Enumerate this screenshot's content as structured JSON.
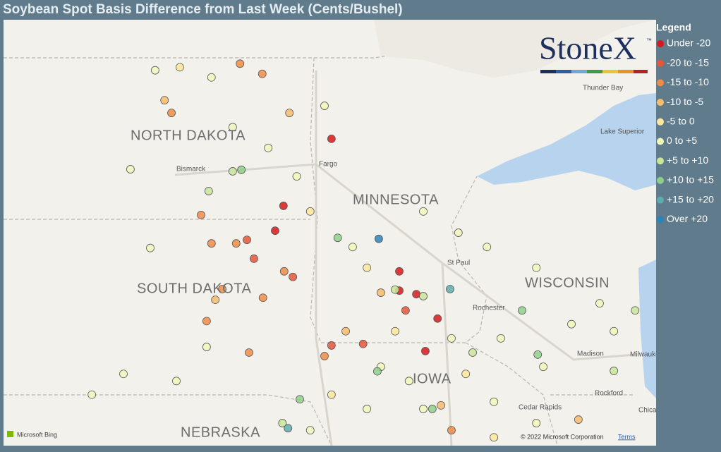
{
  "header": {
    "title": "Soybean Spot Basis Difference from Last Week (Cents/Bushel)"
  },
  "legend": {
    "title": "Legend",
    "items": [
      {
        "label": "Under -20",
        "color": "#d7191c"
      },
      {
        "label": "-20 to -15",
        "color": "#e4573b"
      },
      {
        "label": "-15 to -10",
        "color": "#ef8c48"
      },
      {
        "label": "-10 to -5",
        "color": "#f7bc6c"
      },
      {
        "label": "-5 to 0",
        "color": "#fde79c"
      },
      {
        "label": "0 to +5",
        "color": "#f1f7bb"
      },
      {
        "label": "+5 to +10",
        "color": "#c9e69b"
      },
      {
        "label": "+10 to +15",
        "color": "#8fcf8c"
      },
      {
        "label": "+15 to +20",
        "color": "#5eadad"
      },
      {
        "label": "Over +20",
        "color": "#2b83ba"
      }
    ]
  },
  "logo": {
    "text": "StoneX",
    "mark": "™"
  },
  "map": {
    "states": [
      "NORTH DAKOTA",
      "SOUTH DAKOTA",
      "MINNESOTA",
      "WISCONSIN",
      "NEBRASKA",
      "IOWA"
    ],
    "places": [
      "Bismarck",
      "Fargo",
      "St Paul",
      "Thunder Bay",
      "Lake Superior",
      "Rochester",
      "Madison",
      "Milwaukee",
      "Rockford",
      "Cedar Rapids",
      "Chicago"
    ],
    "attribution": "Microsoft Bing",
    "copyright": "© 2022 Microsoft Corporation",
    "terms": "Terms",
    "points": [
      {
        "lon": -96.28,
        "lat": 47.52,
        "bin": 0
      },
      {
        "lon": -97.66,
        "lat": 46.2,
        "bin": 0
      },
      {
        "lon": -97.9,
        "lat": 45.71,
        "bin": 0
      },
      {
        "lon": -94.33,
        "lat": 44.91,
        "bin": 0
      },
      {
        "lon": -94.33,
        "lat": 44.53,
        "bin": 0
      },
      {
        "lon": -93.84,
        "lat": 44.46,
        "bin": 0
      },
      {
        "lon": -93.23,
        "lat": 43.98,
        "bin": 0
      },
      {
        "lon": -93.58,
        "lat": 43.34,
        "bin": 0
      },
      {
        "lon": -98.51,
        "lat": 45.16,
        "bin": 1
      },
      {
        "lon": -97.39,
        "lat": 44.8,
        "bin": 1
      },
      {
        "lon": -96.28,
        "lat": 43.45,
        "bin": 1
      },
      {
        "lon": -95.37,
        "lat": 43.48,
        "bin": 1
      },
      {
        "lon": -94.15,
        "lat": 44.14,
        "bin": 1
      },
      {
        "lon": -98.71,
        "lat": 45.53,
        "bin": 1
      },
      {
        "lon": -100.88,
        "lat": 48.03,
        "bin": 2
      },
      {
        "lon": -100.03,
        "lat": 46.02,
        "bin": 2
      },
      {
        "lon": -99.73,
        "lat": 45.46,
        "bin": 2
      },
      {
        "lon": -99.02,
        "lat": 45.46,
        "bin": 2
      },
      {
        "lon": -98.25,
        "lat": 44.39,
        "bin": 2
      },
      {
        "lon": -99.42,
        "lat": 44.56,
        "bin": 2
      },
      {
        "lon": -98.65,
        "lat": 43.31,
        "bin": 2
      },
      {
        "lon": -97.64,
        "lat": 44.91,
        "bin": 2
      },
      {
        "lon": -96.48,
        "lat": 43.24,
        "bin": 2
      },
      {
        "lon": -99.87,
        "lat": 43.93,
        "bin": 2
      },
      {
        "lon": -98.27,
        "lat": 48.8,
        "bin": 2
      },
      {
        "lon": -98.91,
        "lat": 49.0,
        "bin": 2
      },
      {
        "lon": -92.83,
        "lat": 41.78,
        "bin": 2
      },
      {
        "lon": -101.08,
        "lat": 48.28,
        "bin": 3
      },
      {
        "lon": -97.49,
        "lat": 48.03,
        "bin": 3
      },
      {
        "lon": -94.86,
        "lat": 44.49,
        "bin": 3
      },
      {
        "lon": -95.87,
        "lat": 43.73,
        "bin": 3
      },
      {
        "lon": -93.13,
        "lat": 42.27,
        "bin": 3
      },
      {
        "lon": -89.18,
        "lat": 41.99,
        "bin": 3
      },
      {
        "lon": -99.62,
        "lat": 44.35,
        "bin": 3
      },
      {
        "lon": -100.64,
        "lat": 48.93,
        "bin": 4
      },
      {
        "lon": -96.89,
        "lat": 46.09,
        "bin": 4
      },
      {
        "lon": -95.26,
        "lat": 44.98,
        "bin": 4
      },
      {
        "lon": -94.45,
        "lat": 43.73,
        "bin": 4
      },
      {
        "lon": -92.42,
        "lat": 42.89,
        "bin": 4
      },
      {
        "lon": -91.61,
        "lat": 41.64,
        "bin": 4
      },
      {
        "lon": -96.28,
        "lat": 42.48,
        "bin": 4
      },
      {
        "lon": -101.35,
        "lat": 48.87,
        "bin": 5
      },
      {
        "lon": -99.12,
        "lat": 47.75,
        "bin": 5
      },
      {
        "lon": -102.06,
        "lat": 46.92,
        "bin": 5
      },
      {
        "lon": -101.49,
        "lat": 45.37,
        "bin": 5
      },
      {
        "lon": -99.87,
        "lat": 43.42,
        "bin": 5
      },
      {
        "lon": -102.26,
        "lat": 42.89,
        "bin": 5
      },
      {
        "lon": -103.17,
        "lat": 42.48,
        "bin": 5
      },
      {
        "lon": -100.74,
        "lat": 42.75,
        "bin": 5
      },
      {
        "lon": -91.81,
        "lat": 45.39,
        "bin": 5
      },
      {
        "lon": -90.39,
        "lat": 44.98,
        "bin": 5
      },
      {
        "lon": -88.57,
        "lat": 44.28,
        "bin": 5
      },
      {
        "lon": -88.16,
        "lat": 43.73,
        "bin": 5
      },
      {
        "lon": -90.19,
        "lat": 43.03,
        "bin": 5
      },
      {
        "lon": -91.41,
        "lat": 43.59,
        "bin": 5
      },
      {
        "lon": -94.05,
        "lat": 42.75,
        "bin": 5
      },
      {
        "lon": -95.26,
        "lat": 42.2,
        "bin": 5
      },
      {
        "lon": -96.89,
        "lat": 41.78,
        "bin": 5
      },
      {
        "lon": -92.83,
        "lat": 43.59,
        "bin": 5
      },
      {
        "lon": -95.67,
        "lat": 45.39,
        "bin": 5
      },
      {
        "lon": -93.64,
        "lat": 46.09,
        "bin": 5
      },
      {
        "lon": -92.63,
        "lat": 45.67,
        "bin": 5
      },
      {
        "lon": -96.48,
        "lat": 48.17,
        "bin": 5
      },
      {
        "lon": -99.73,
        "lat": 48.73,
        "bin": 5
      },
      {
        "lon": -98.1,
        "lat": 47.34,
        "bin": 5
      },
      {
        "lon": -97.28,
        "lat": 46.78,
        "bin": 5
      },
      {
        "lon": -91.61,
        "lat": 42.34,
        "bin": 5
      },
      {
        "lon": -90.39,
        "lat": 41.92,
        "bin": 5
      },
      {
        "lon": -94.86,
        "lat": 43.03,
        "bin": 5
      },
      {
        "lon": -93.64,
        "lat": 42.2,
        "bin": 5
      },
      {
        "lon": -89.38,
        "lat": 43.87,
        "bin": 5
      },
      {
        "lon": -99.12,
        "lat": 46.88,
        "bin": 6
      },
      {
        "lon": -99.81,
        "lat": 46.49,
        "bin": 6
      },
      {
        "lon": -93.64,
        "lat": 44.42,
        "bin": 6
      },
      {
        "lon": -92.22,
        "lat": 43.31,
        "bin": 6
      },
      {
        "lon": -88.16,
        "lat": 42.95,
        "bin": 6
      },
      {
        "lon": -97.69,
        "lat": 41.92,
        "bin": 6
      },
      {
        "lon": -94.45,
        "lat": 44.55,
        "bin": 6
      },
      {
        "lon": -87.55,
        "lat": 44.14,
        "bin": 6
      },
      {
        "lon": -98.87,
        "lat": 46.91,
        "bin": 7
      },
      {
        "lon": -96.1,
        "lat": 45.57,
        "bin": 7
      },
      {
        "lon": -90.35,
        "lat": 43.27,
        "bin": 7
      },
      {
        "lon": -94.96,
        "lat": 42.94,
        "bin": 7
      },
      {
        "lon": -93.38,
        "lat": 42.2,
        "bin": 7
      },
      {
        "lon": -97.19,
        "lat": 42.39,
        "bin": 7
      },
      {
        "lon": -90.8,
        "lat": 44.14,
        "bin": 7
      },
      {
        "lon": -92.87,
        "lat": 44.56,
        "bin": 8
      },
      {
        "lon": -97.53,
        "lat": 41.82,
        "bin": 8
      },
      {
        "lon": -94.92,
        "lat": 45.55,
        "bin": 9
      }
    ]
  }
}
